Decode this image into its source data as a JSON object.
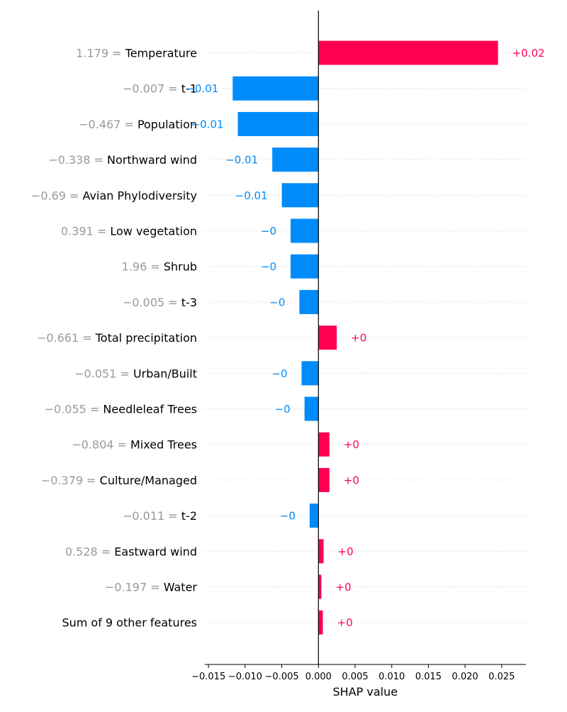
{
  "chart_data": {
    "type": "bar",
    "orientation": "horizontal",
    "xlabel": "SHAP value",
    "xlim": [
      -0.0155,
      0.0283
    ],
    "xticks": [
      -0.015,
      -0.01,
      -0.005,
      0.0,
      0.005,
      0.01,
      0.015,
      0.02,
      0.025
    ],
    "xtick_labels": [
      "−0.015",
      "−0.010",
      "−0.005",
      "0.000",
      "0.005",
      "0.010",
      "0.015",
      "0.020",
      "0.025"
    ],
    "grid": "dotted horizontal row guides",
    "colors": {
      "positive": "#ff0051",
      "negative": "#008bfb",
      "feature_value": "#999999",
      "feature_name": "#000000"
    },
    "features": [
      {
        "value": "1.179 =",
        "name": "Temperature",
        "shap": 0.0245,
        "label": "+0.02"
      },
      {
        "value": "−0.007 =",
        "name": "t-1",
        "shap": -0.0117,
        "label": "−0.01"
      },
      {
        "value": "−0.467 =",
        "name": "Population",
        "shap": -0.011,
        "label": "−0.01"
      },
      {
        "value": "−0.338 =",
        "name": "Northward wind",
        "shap": -0.0063,
        "label": "−0.01"
      },
      {
        "value": "−0.69 =",
        "name": "Avian Phylodiversity",
        "shap": -0.005,
        "label": "−0.01"
      },
      {
        "value": "0.391 =",
        "name": "Low vegetation",
        "shap": -0.0038,
        "label": "−0"
      },
      {
        "value": "1.96 =",
        "name": "Shrub",
        "shap": -0.0038,
        "label": "−0"
      },
      {
        "value": "−0.005 =",
        "name": "t-3",
        "shap": -0.0026,
        "label": "−0"
      },
      {
        "value": "−0.661 =",
        "name": "Total precipitation",
        "shap": 0.0025,
        "label": "+0"
      },
      {
        "value": "−0.051 =",
        "name": "Urban/Built",
        "shap": -0.0023,
        "label": "−0"
      },
      {
        "value": "−0.055 =",
        "name": "Needleleaf Trees",
        "shap": -0.0019,
        "label": "−0"
      },
      {
        "value": "−0.804 =",
        "name": "Mixed Trees",
        "shap": 0.0015,
        "label": "+0"
      },
      {
        "value": "−0.379 =",
        "name": "Culture/Managed",
        "shap": 0.0015,
        "label": "+0"
      },
      {
        "value": "−0.011 =",
        "name": "t-2",
        "shap": -0.0012,
        "label": "−0"
      },
      {
        "value": "0.528 =",
        "name": "Eastward wind",
        "shap": 0.0007,
        "label": "+0"
      },
      {
        "value": "−0.197 =",
        "name": "Water",
        "shap": 0.0004,
        "label": "+0"
      },
      {
        "value": "",
        "name": "Sum of 9 other features",
        "shap": 0.0006,
        "label": "+0"
      }
    ]
  }
}
